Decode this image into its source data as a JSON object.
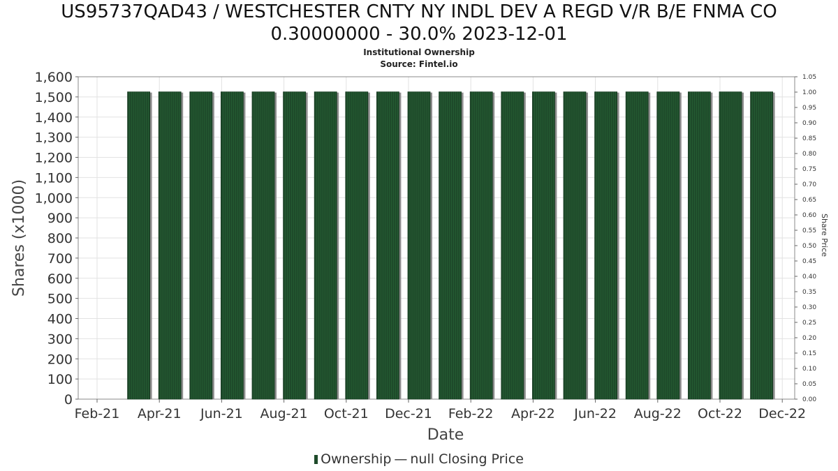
{
  "title_line1": "US95737QAD43 / WESTCHESTER CNTY NY INDL DEV A REGD V/R B/E FNMA CO",
  "title_line2": "0.30000000 - 30.0% 2023-12-01",
  "subtitle": "Institutional Ownership",
  "source": "Source: Fintel.io",
  "colors": {
    "bar": "#1e4a2a",
    "bar_shadow": "#8c8c8c",
    "grid": "#e2e2e2",
    "frame": "#888888"
  },
  "legend": {
    "ownership": "Ownership",
    "dash": "—",
    "price": "null Closing Price"
  },
  "chart_data": {
    "type": "bar",
    "xlabel": "Date",
    "ylabel": "Shares (x1000)",
    "y2label": "Share Price",
    "ylim": [
      0,
      1600
    ],
    "y2lim": [
      0,
      1.05
    ],
    "y_ticks": [
      "0",
      "100",
      "200",
      "300",
      "400",
      "500",
      "600",
      "700",
      "800",
      "900",
      "1,000",
      "1,100",
      "1,200",
      "1,300",
      "1,400",
      "1,500",
      "1,600"
    ],
    "y2_ticks": [
      "0.00",
      "0.05",
      "0.10",
      "0.15",
      "0.20",
      "0.25",
      "0.30",
      "0.35",
      "0.40",
      "0.45",
      "0.50",
      "0.55",
      "0.60",
      "0.65",
      "0.70",
      "0.75",
      "0.80",
      "0.85",
      "0.90",
      "0.95",
      "1.00",
      "1.05"
    ],
    "x_ticks": [
      "Feb-21",
      "Apr-21",
      "Jun-21",
      "Aug-21",
      "Oct-21",
      "Dec-21",
      "Feb-22",
      "Apr-22",
      "Jun-22",
      "Aug-22",
      "Oct-22",
      "Dec-22"
    ],
    "grid": true,
    "legend_position": "bottom",
    "series": [
      {
        "name": "Ownership",
        "x": [
          "2021-03",
          "2021-04",
          "2021-05",
          "2021-06",
          "2021-07",
          "2021-08",
          "2021-09",
          "2021-10",
          "2021-11",
          "2021-12",
          "2022-01",
          "2022-02",
          "2022-03",
          "2022-04",
          "2022-05",
          "2022-06",
          "2022-07",
          "2022-08",
          "2022-09",
          "2022-10",
          "2022-11"
        ],
        "values": [
          1525,
          1525,
          1525,
          1525,
          1525,
          1525,
          1525,
          1525,
          1525,
          1525,
          1525,
          1525,
          1525,
          1525,
          1525,
          1525,
          1525,
          1525,
          1525,
          1525,
          1525
        ]
      }
    ]
  }
}
